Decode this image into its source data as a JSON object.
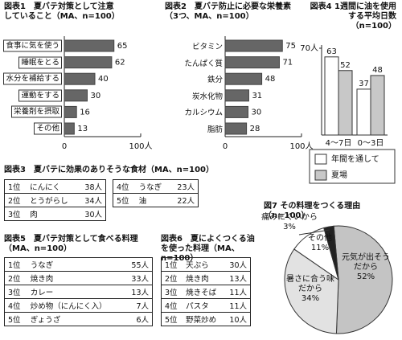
{
  "chart_data": [
    {
      "type": "bar",
      "orientation": "horizontal",
      "title": "図表1　夏バテ対策として注意していること（MA、n=100）",
      "categories": [
        "食事に気を使う",
        "睡眠をとる",
        "水分を補給する",
        "運動をする",
        "栄養剤を摂取",
        "その他"
      ],
      "values": [
        65,
        62,
        40,
        30,
        16,
        13
      ],
      "color": "#666666",
      "xlim": [
        0,
        100
      ],
      "xticks": [
        0,
        {
          "value": 100,
          "label": "100人"
        }
      ]
    },
    {
      "type": "bar",
      "orientation": "horizontal",
      "title": "図表2　夏バテ防止に必要な栄養素（3つ、MA、n=100）",
      "categories": [
        "ビタミン",
        "たんぱく質",
        "鉄分",
        "炭水化物",
        "カルシウム",
        "脂肪"
      ],
      "values": [
        75,
        71,
        48,
        31,
        30,
        28
      ],
      "color": "#666666",
      "xlim": [
        0,
        100
      ],
      "xticks": [
        0,
        {
          "value": 100,
          "label": "100人"
        }
      ]
    },
    {
      "type": "bar",
      "orientation": "vertical",
      "title": "図表4 1週間に油を使用する平均日数（n=100）",
      "categories": [
        "4〜7日",
        "0〜3日"
      ],
      "series": [
        {
          "name": "年間を通して",
          "color": "#ffffff",
          "values": [
            63,
            37
          ]
        },
        {
          "name": "夏場",
          "color": "#c8c8c8",
          "values": [
            52,
            48
          ]
        }
      ],
      "ylim": [
        0,
        70
      ],
      "yticks": [
        {
          "value": 70,
          "label": "70人"
        }
      ],
      "legend": "bottom"
    },
    {
      "type": "pie",
      "title": "図7 その料理をつくる理由（n=100）",
      "categories": [
        "元気が出そうだから",
        "暑さに合う味だから",
        "その他",
        "痛みにくいから"
      ],
      "values": [
        52,
        34,
        11,
        3
      ],
      "value_labels": [
        "52%",
        "34%",
        "11%",
        "3%"
      ],
      "colors": [
        "#c4c4c4",
        "#e2e2e2",
        "#ffffff",
        "#222222"
      ]
    }
  ],
  "tables": [
    {
      "title": "図表3　夏バテに効果のありそうな食材（MA、n=100）",
      "rows": [
        [
          "1位",
          "にんにく",
          "38人"
        ],
        [
          "2位",
          "とうがらし",
          "34人"
        ],
        [
          "3位",
          "肉",
          "30人"
        ],
        [
          "4位",
          "うなぎ",
          "23人"
        ],
        [
          "5位",
          "油",
          "22人"
        ]
      ]
    },
    {
      "title": "図表5　夏バテ対策として食べる料理（MA、n=100）",
      "rows": [
        [
          "1位",
          "うなぎ",
          "55人"
        ],
        [
          "2位",
          "焼き肉",
          "33人"
        ],
        [
          "3位",
          "カレー",
          "13人"
        ],
        [
          "4位",
          "炒め物（にんにく入）",
          "7人"
        ],
        [
          "5位",
          "ぎょうざ",
          "6人"
        ]
      ]
    },
    {
      "title": "図表6　夏によくつくる油を使った料理（MA、n=100）",
      "rows": [
        [
          "1位",
          "天ぷら",
          "30人"
        ],
        [
          "2位",
          "焼き肉",
          "13人"
        ],
        [
          "3位",
          "焼きそば",
          "11人"
        ],
        [
          "4位",
          "パスタ",
          "11人"
        ],
        [
          "5位",
          "野菜炒め",
          "10人"
        ]
      ]
    }
  ]
}
